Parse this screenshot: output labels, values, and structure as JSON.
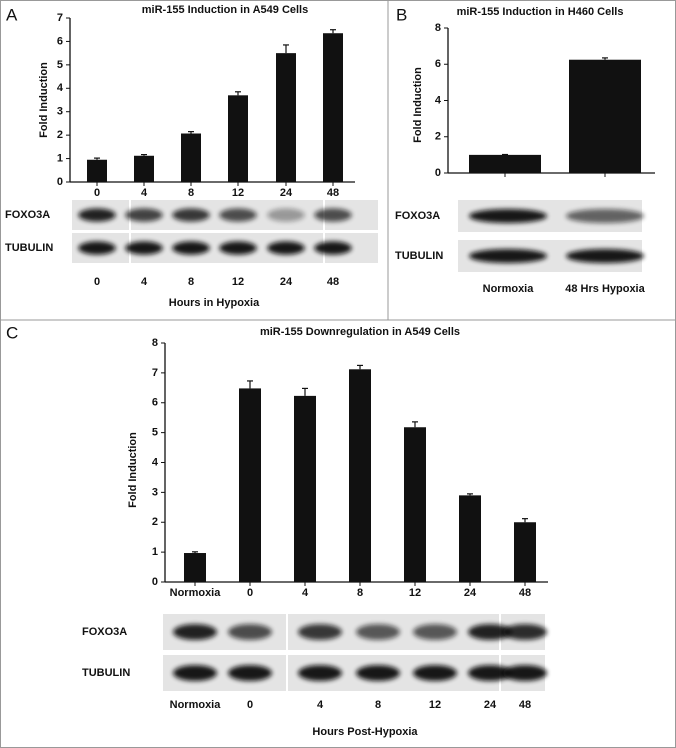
{
  "chart_data": [
    {
      "type": "bar",
      "title": "miR-155 Induction in A549 Cells",
      "ylabel": "Fold Induction",
      "categories": [
        "0",
        "4",
        "8",
        "12",
        "24",
        "48"
      ],
      "values": [
        0.95,
        1.12,
        2.07,
        3.7,
        5.5,
        6.35
      ],
      "errors": [
        0.07,
        0.05,
        0.08,
        0.15,
        0.35,
        0.15
      ],
      "color": "#111111",
      "ylim": [
        0,
        7
      ],
      "yticks": [
        0,
        1,
        2,
        3,
        4,
        5,
        6,
        7
      ]
    },
    {
      "type": "bar",
      "title": "miR-155 Induction in H460 Cells",
      "ylabel": "Fold Induction",
      "categories": [
        null,
        null
      ],
      "values": [
        1.0,
        6.25
      ],
      "errors": [
        0.02,
        0.1
      ],
      "color": "#111111",
      "ylim": [
        0,
        8
      ],
      "yticks": [
        0,
        2,
        4,
        6,
        8
      ]
    },
    {
      "type": "bar",
      "title": "miR-155 Downregulation in A549 Cells",
      "ylabel": "Fold Induction",
      "categories": [
        "Normoxia",
        "0",
        "4",
        "8",
        "12",
        "24",
        "48"
      ],
      "values": [
        0.97,
        6.48,
        6.23,
        7.12,
        5.18,
        2.9,
        2.0
      ],
      "errors": [
        0.04,
        0.25,
        0.25,
        0.13,
        0.18,
        0.05,
        0.12
      ],
      "color": "#111111",
      "ylim": [
        0,
        8
      ],
      "yticks": [
        0,
        1,
        2,
        3,
        4,
        5,
        6,
        7,
        8
      ]
    }
  ],
  "panels": [
    "A",
    "B",
    "C"
  ],
  "blots": [
    {
      "rows": [
        "FOXO3A",
        "TUBULIN"
      ],
      "lanes": [
        "0",
        "4",
        "8",
        "12",
        "24",
        "48"
      ],
      "xlabel": "Hours in Hypoxia"
    },
    {
      "rows": [
        "FOXO3A",
        "TUBULIN"
      ],
      "lanes": [
        "Normoxia",
        "48 Hrs Hypoxia"
      ]
    },
    {
      "rows": [
        "FOXO3A",
        "TUBULIN"
      ],
      "lanes": [
        "Normoxia",
        "0",
        "4",
        "8",
        "12",
        "24",
        "48"
      ],
      "xlabel": "Hours Post-Hypoxia"
    }
  ]
}
